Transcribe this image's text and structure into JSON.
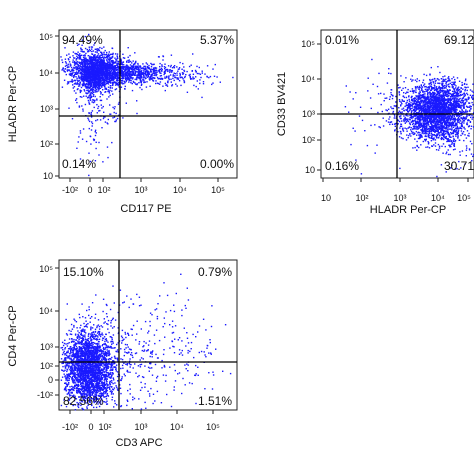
{
  "chart_data": [
    {
      "type": "scatter",
      "xlabel": "CD117 PE",
      "ylabel": "HLADR Per-CP",
      "x_ticks": [
        "-10²",
        "0",
        "10²",
        "10³",
        "10⁴",
        "10⁵"
      ],
      "y_ticks": [
        "10",
        "10²",
        "10³",
        "10⁴",
        "10⁵"
      ],
      "quadrants": {
        "top_left": "94.49%",
        "top_right": "5.37%",
        "bottom_left": "0.14%",
        "bottom_right": "0.00%"
      },
      "point_color": "#1a1aff"
    },
    {
      "type": "scatter",
      "xlabel": "HLADR Per-CP",
      "ylabel": "CD33 BV421",
      "x_ticks": [
        "10",
        "10²",
        "10³",
        "10⁴",
        "10⁵"
      ],
      "y_ticks": [
        "10",
        "10²",
        "10³",
        "10⁴",
        "10⁵"
      ],
      "quadrants": {
        "top_left": "0.01%",
        "top_right": "69.12",
        "bottom_left": "0.16%",
        "bottom_right": "30.71"
      },
      "point_color": "#1a1aff"
    },
    {
      "type": "scatter",
      "xlabel": "CD3 APC",
      "ylabel": "CD4 Per-CP",
      "x_ticks": [
        "-10²",
        "0",
        "10²",
        "10³",
        "10⁴",
        "10⁵"
      ],
      "y_ticks": [
        "-10²",
        "0",
        "10²",
        "10³",
        "10⁴",
        "10⁵"
      ],
      "quadrants": {
        "top_left": "15.10%",
        "top_right": "0.79%",
        "bottom_left": "82.56%",
        "bottom_right": "1.51%"
      },
      "point_color": "#1a1aff"
    }
  ]
}
